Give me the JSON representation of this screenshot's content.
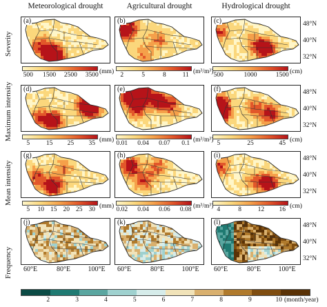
{
  "columns": [
    "Meteorological  drought",
    "Agricultural drought",
    "Hydrological drought"
  ],
  "rows": [
    "Severity",
    "Maximum intensity",
    "Mean intensity",
    "Frequency"
  ],
  "panel_labels": [
    "(a)",
    "(b)",
    "(c)",
    "(d)",
    "(e)",
    "(f)",
    "(g)",
    "(h)",
    "(i)",
    "(j)",
    "(k)",
    "(l)"
  ],
  "latitudes": [
    "48°N",
    "40°N",
    "32°N"
  ],
  "longitudes": [
    "60°E",
    "80°E",
    "100°E"
  ],
  "colorbars": [
    [
      {
        "ticks": [
          "500",
          "1500",
          "2500",
          "3500"
        ],
        "unit": "(mm)"
      },
      {
        "ticks": [
          "2",
          "5",
          "8",
          "11"
        ],
        "unit": "(m³/m³)"
      },
      {
        "ticks": [
          "500",
          "1000",
          "1500"
        ],
        "unit": "(cm)"
      }
    ],
    [
      {
        "ticks": [
          "5",
          "15",
          "25",
          "35"
        ],
        "unit": "(mm)"
      },
      {
        "ticks": [
          "0.01",
          "0.04",
          "0.07",
          "0.1"
        ],
        "unit": "(m³/m³)"
      },
      {
        "ticks": [
          "5",
          "25",
          "45"
        ],
        "unit": "(cm)"
      }
    ],
    [
      {
        "ticks": [
          "5",
          "10",
          "15",
          "20",
          "25",
          "30"
        ],
        "unit": "(mm)"
      },
      {
        "ticks": [
          "0.02",
          "0.04",
          "0.06",
          "0.08"
        ],
        "unit": "(m³/m³)"
      },
      {
        "ticks": [
          "4",
          "8",
          "12",
          "16"
        ],
        "unit": "(cm)"
      }
    ]
  ],
  "frequency_legend": {
    "ticks": [
      "2",
      "3",
      "4",
      "5",
      "6",
      "7",
      "8",
      "9",
      "10"
    ],
    "unit": "(month/year)",
    "colors": [
      "#0b4b45",
      "#1f7a72",
      "#5aa6a0",
      "#9fd1cf",
      "#d6ecea",
      "#f1e3b9",
      "#d9b06e",
      "#b07a2c",
      "#7f4d10",
      "#5a3206"
    ]
  },
  "colors": {
    "warm_ramp": [
      "#fff6c8",
      "#fbd77c",
      "#f5a04a",
      "#e2572a",
      "#b61319"
    ]
  }
}
